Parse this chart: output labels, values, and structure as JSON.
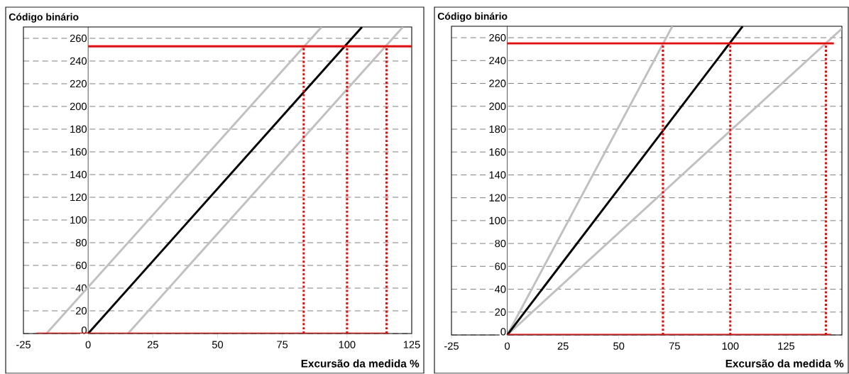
{
  "chart_data": [
    {
      "type": "line",
      "ylabel": "Código binário",
      "xlabel": "Excursão da medida %",
      "xlim": [
        -25,
        125
      ],
      "ylim": [
        0,
        270
      ],
      "xticks": [
        -25,
        0,
        25,
        50,
        75,
        100,
        125
      ],
      "yticks": [
        0,
        20,
        40,
        60,
        80,
        100,
        120,
        140,
        160,
        180,
        200,
        220,
        240,
        260
      ],
      "grid": "y",
      "series": [
        {
          "color": "#c0c0c0",
          "line_style": "solid",
          "x": [
            -16.1,
            90.2
          ],
          "values": [
            0,
            270
          ]
        },
        {
          "color": "#c0c0c0",
          "line_style": "solid",
          "x": [
            15.4,
            121.6
          ],
          "values": [
            0,
            270
          ]
        },
        {
          "color": "#000000",
          "line_style": "solid",
          "x": [
            0,
            105.8
          ],
          "values": [
            0,
            270
          ]
        },
        {
          "color": "#ff0000",
          "line_style": "solid",
          "x": [
            0,
            125
          ],
          "values": [
            253,
            253
          ]
        },
        {
          "color": "#ff0000",
          "line_style": "solid",
          "x": [
            -20,
            116
          ],
          "values": [
            0,
            0
          ]
        },
        {
          "color": "#ff0000",
          "line_style": "dotted",
          "x": [
            83.3,
            83.3
          ],
          "values": [
            0,
            253
          ]
        },
        {
          "color": "#ff0000",
          "line_style": "dotted",
          "x": [
            100,
            100
          ],
          "values": [
            0,
            253
          ]
        },
        {
          "color": "#ff0000",
          "line_style": "dotted",
          "x": [
            115.3,
            115.3
          ],
          "values": [
            0,
            253
          ]
        }
      ]
    },
    {
      "type": "line",
      "ylabel": "Código binário",
      "xlabel": "Excursão da medida %",
      "xlim": [
        -25,
        150
      ],
      "ylim": [
        0,
        270
      ],
      "xticks": [
        -25,
        0,
        25,
        50,
        75,
        100,
        125,
        {
          "value": 150,
          "label": null
        }
      ],
      "yticks": [
        0,
        20,
        40,
        60,
        80,
        100,
        120,
        140,
        160,
        180,
        200,
        220,
        240,
        260
      ],
      "grid": "y",
      "series": [
        {
          "color": "#c0c0c0",
          "line_style": "solid",
          "x": [
            0,
            74
          ],
          "values": [
            0,
            270
          ]
        },
        {
          "color": "#c0c0c0",
          "line_style": "solid",
          "x": [
            0,
            150
          ],
          "values": [
            0,
            268
          ]
        },
        {
          "color": "#000000",
          "line_style": "solid",
          "x": [
            0,
            105.5
          ],
          "values": [
            0,
            270
          ]
        },
        {
          "color": "#ff0000",
          "line_style": "solid",
          "x": [
            0,
            146.4
          ],
          "values": [
            255,
            255
          ]
        },
        {
          "color": "#ff0000",
          "line_style": "solid",
          "x": [
            0,
            145.2
          ],
          "values": [
            0,
            0
          ]
        },
        {
          "color": "#ff0000",
          "line_style": "dotted",
          "x": [
            69.8,
            69.8
          ],
          "values": [
            0,
            255
          ]
        },
        {
          "color": "#ff0000",
          "line_style": "dotted",
          "x": [
            100,
            100
          ],
          "values": [
            0,
            255
          ]
        },
        {
          "color": "#ff0000",
          "line_style": "dotted",
          "x": [
            142.8,
            142.8
          ],
          "values": [
            0,
            255
          ]
        }
      ]
    }
  ]
}
